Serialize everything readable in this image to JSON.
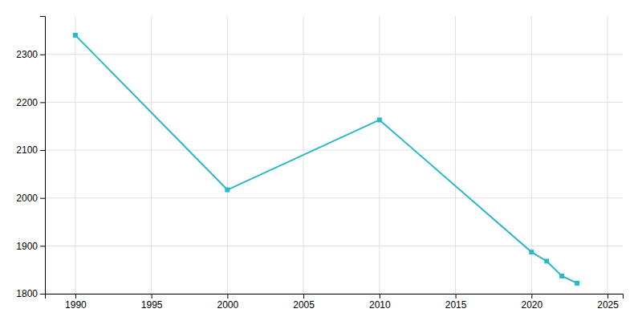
{
  "chart_data": {
    "type": "line",
    "x": [
      1990,
      2000,
      2010,
      2020,
      2021,
      2022,
      2023
    ],
    "values": [
      2340,
      2017,
      2163,
      1887,
      1868,
      1837,
      1822
    ],
    "color": "#29b8c5",
    "marker": "square",
    "xlim": [
      1988,
      2026
    ],
    "ylim": [
      1800,
      2380
    ],
    "xticks": [
      1990,
      1995,
      2000,
      2005,
      2010,
      2015,
      2020,
      2025
    ],
    "yticks": [
      1800,
      1900,
      2000,
      2100,
      2200,
      2300
    ],
    "grid": true
  }
}
